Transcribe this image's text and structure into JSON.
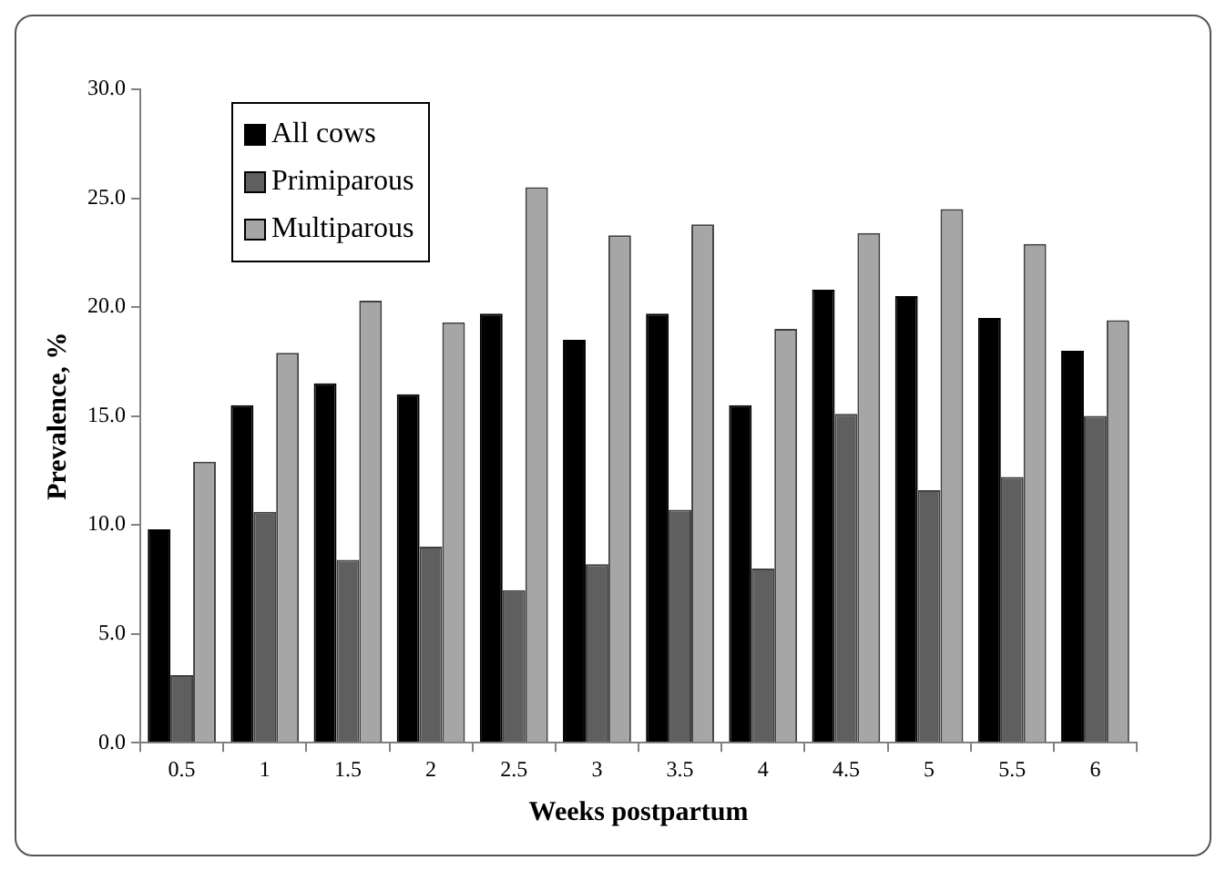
{
  "chart_data": {
    "type": "bar",
    "xlabel": "Weeks postpartum",
    "ylabel": "Prevalence, %",
    "categories": [
      "0.5",
      "1",
      "1.5",
      "2",
      "2.5",
      "3",
      "3.5",
      "4",
      "4.5",
      "5",
      "5.5",
      "6"
    ],
    "series": [
      {
        "name": "All cows",
        "color": "#000000",
        "values": [
          9.8,
          15.5,
          16.5,
          16.0,
          19.7,
          18.5,
          19.7,
          15.5,
          20.8,
          20.5,
          19.5,
          18.0
        ]
      },
      {
        "name": "Primiparous",
        "color": "#5f5f5f",
        "values": [
          3.1,
          10.6,
          8.4,
          9.0,
          7.0,
          8.2,
          10.7,
          8.0,
          15.1,
          11.6,
          12.2,
          15.0
        ]
      },
      {
        "name": "Multiparous",
        "color": "#a6a6a6",
        "values": [
          12.9,
          17.9,
          20.3,
          19.3,
          25.5,
          23.3,
          23.8,
          19.0,
          23.4,
          24.5,
          22.9,
          19.4
        ]
      }
    ],
    "ylim": [
      0,
      30
    ],
    "yticks": [
      {
        "value": 0,
        "label": "0.0"
      },
      {
        "value": 5,
        "label": "5.0"
      },
      {
        "value": 10,
        "label": "10.0"
      },
      {
        "value": 15,
        "label": "15.0"
      },
      {
        "value": 20,
        "label": "20.0"
      },
      {
        "value": 25,
        "label": "25.0"
      },
      {
        "value": 30,
        "label": "30.0"
      }
    ],
    "grid": false,
    "legend": "top left"
  }
}
